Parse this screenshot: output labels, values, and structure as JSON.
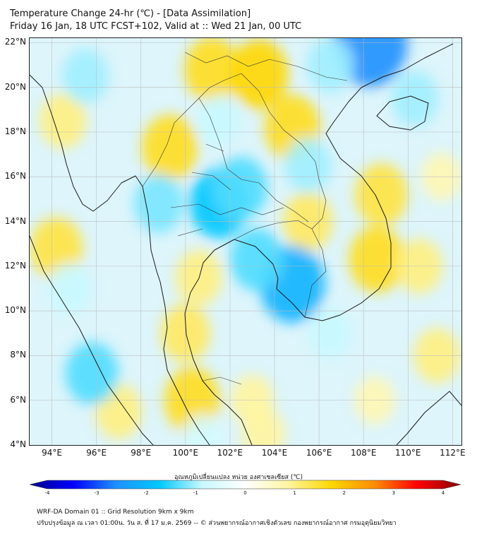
{
  "header": {
    "title_line1": "Temperature Change 24-hr (℃) - [Data Assimilation]",
    "title_line2": "Friday 16 Jan, 18 UTC FCST+102, Valid at :: Wed 21 Jan, 00 UTC"
  },
  "map": {
    "lat_labels": [
      "22°N",
      "20°N",
      "18°N",
      "16°N",
      "14°N",
      "12°N",
      "10°N",
      "8°N",
      "6°N",
      "4°N"
    ],
    "lon_labels": [
      "94°E",
      "96°E",
      "98°E",
      "100°E",
      "102°E",
      "104°E",
      "106°E",
      "108°E",
      "110°E",
      "112°E"
    ],
    "lat_range": [
      4,
      22.2
    ],
    "lon_range": [
      93,
      112.4
    ],
    "anomalies": [
      {
        "lon": 99.3,
        "lat": 17.3,
        "value": 0.9
      },
      {
        "lon": 101.2,
        "lat": 20.8,
        "value": 0.9
      },
      {
        "lon": 103.3,
        "lat": 20.6,
        "value": 1.0
      },
      {
        "lon": 104.8,
        "lat": 18.2,
        "value": 0.9
      },
      {
        "lon": 94.2,
        "lat": 12.8,
        "value": 0.8
      },
      {
        "lon": 94.5,
        "lat": 18.5,
        "value": 0.6
      },
      {
        "lon": 100.0,
        "lat": 9.0,
        "value": 0.7
      },
      {
        "lon": 100.3,
        "lat": 6.0,
        "value": 0.9
      },
      {
        "lon": 100.6,
        "lat": 11.5,
        "value": 0.6
      },
      {
        "lon": 105.5,
        "lat": 14.0,
        "value": 0.7
      },
      {
        "lon": 108.6,
        "lat": 12.3,
        "value": 0.9
      },
      {
        "lon": 108.8,
        "lat": 15.2,
        "value": 0.8
      },
      {
        "lon": 110.5,
        "lat": 12.0,
        "value": 0.6
      },
      {
        "lon": 111.3,
        "lat": 8.0,
        "value": 0.6
      },
      {
        "lon": 97.0,
        "lat": 5.5,
        "value": 0.6
      },
      {
        "lon": 103.0,
        "lat": 6.0,
        "value": 0.5
      },
      {
        "lon": 108.5,
        "lat": 6.0,
        "value": 0.4
      },
      {
        "lon": 103.5,
        "lat": 4.5,
        "value": 0.5
      },
      {
        "lon": 111.5,
        "lat": 16.0,
        "value": 0.4
      },
      {
        "lon": 101.5,
        "lat": 14.8,
        "value": -1.0
      },
      {
        "lon": 102.5,
        "lat": 15.5,
        "value": -0.8
      },
      {
        "lon": 104.8,
        "lat": 11.2,
        "value": -1.2
      },
      {
        "lon": 103.2,
        "lat": 12.3,
        "value": -0.8
      },
      {
        "lon": 95.8,
        "lat": 7.2,
        "value": -0.8
      },
      {
        "lon": 94.8,
        "lat": 11.0,
        "value": -0.5
      },
      {
        "lon": 98.8,
        "lat": 14.8,
        "value": -0.7
      },
      {
        "lon": 108.3,
        "lat": 22.0,
        "value": -1.5
      },
      {
        "lon": 106.5,
        "lat": 21.0,
        "value": -0.6
      },
      {
        "lon": 95.5,
        "lat": 20.5,
        "value": -0.6
      },
      {
        "lon": 110.3,
        "lat": 19.5,
        "value": -0.6
      },
      {
        "lon": 106.5,
        "lat": 9.0,
        "value": -0.5
      },
      {
        "lon": 105.5,
        "lat": 16.5,
        "value": -0.6
      },
      {
        "lon": 101.5,
        "lat": 18.5,
        "value": -0.5
      },
      {
        "lon": 100.8,
        "lat": 4.3,
        "value": -0.4
      }
    ]
  },
  "colorbar": {
    "title": "อุณหภูมิเปลี่ยนแปลง หน่วย องศาเซลเซียส (℃)",
    "ticks": [
      "-4",
      "-3",
      "-2",
      "-1",
      "0",
      "1",
      "2",
      "3",
      "4"
    ],
    "range": [
      -4,
      4
    ],
    "stops": [
      "#00008b",
      "#0000ff",
      "#1e90ff",
      "#00c8ff",
      "#c8f8ff",
      "#ffffff",
      "#fff5a0",
      "#ffd700",
      "#ff8c00",
      "#ff0000",
      "#8b0000"
    ]
  },
  "footer": {
    "line1": "WRF-DA Domain 01 :: Grid Resolution 9km x 9km",
    "line2": "ปรับปรุงข้อมูล ณ เวลา 01:00น. วัน ส. ที่ 17 ม.ค. 2569 -- © ส่วนพยากรณ์อากาศเชิงตัวเลข กองพยากรณ์อากาศ กรมอุตุนิยมวิทยา"
  }
}
